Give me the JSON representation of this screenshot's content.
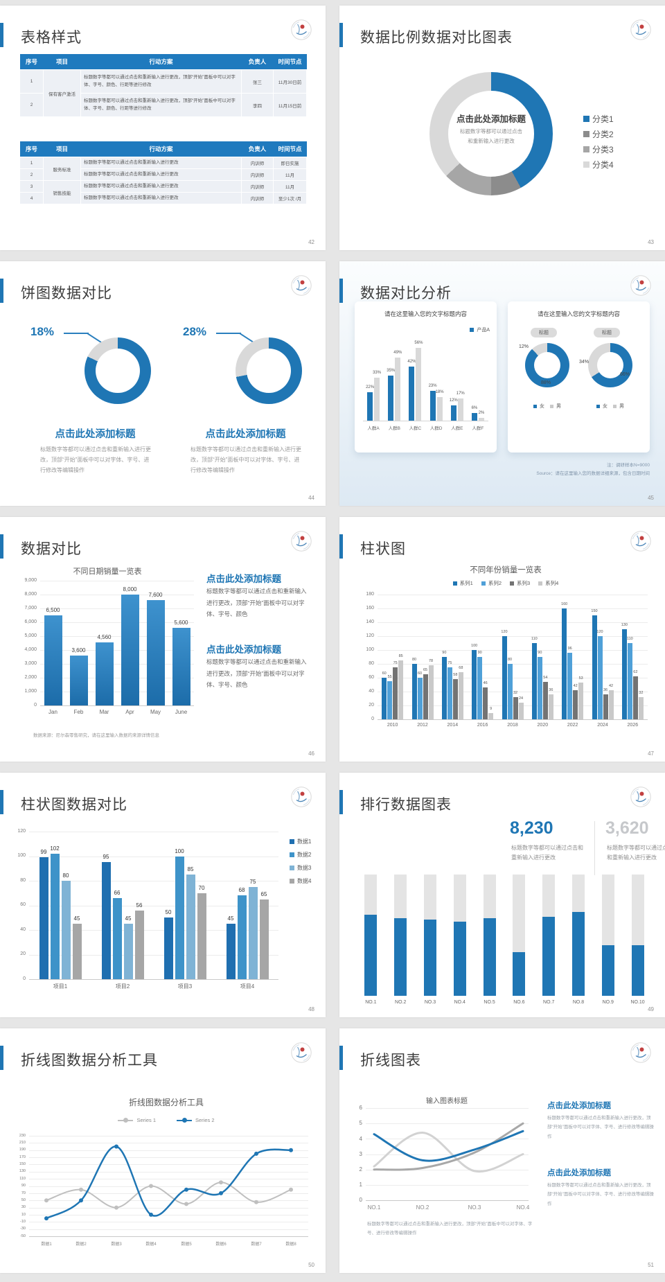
{
  "colors": {
    "accent": "#1F76B4",
    "blue2": "#4FA0D8",
    "blue3": "#7FB3D5",
    "grayDark": "#737373",
    "grayMid": "#A6A6A6",
    "grayLight": "#D9D9D9",
    "barGray": "#C9C9C9",
    "statGray": "#C6C8CB"
  },
  "slides": {
    "s42": {
      "title": "表格样式",
      "page": "42",
      "headers": [
        "序号",
        "项目",
        "行动方案",
        "负责人",
        "时间节点"
      ],
      "table1": {
        "rows": [
          {
            "no": "1",
            "project": "保有客户激活",
            "span": 2,
            "action": "标题数字等都可以通过点击和重新输入进行更改，顶部“开始”面板中可以对字体、字号、颜色、行距等进行修改",
            "owner": "张三",
            "time": "11月30日前"
          },
          {
            "no": "2",
            "action": "标题数字等都可以通过点击和重新输入进行更改，顶部“开始”面板中可以对字体、字号、颜色、行距等进行修改",
            "owner": "李四",
            "time": "11月15日前"
          }
        ]
      },
      "table2": {
        "rows": [
          {
            "no": "1",
            "project": "服务标准",
            "span": 2,
            "action": "标题数字等都可以通过点击和重新输入进行更改",
            "owner": "内训师",
            "time": "即日实施"
          },
          {
            "no": "2",
            "action": "标题数字等都可以通过点击和重新输入进行更改",
            "owner": "内训师",
            "time": "11月"
          },
          {
            "no": "3",
            "project": "销售技能",
            "span": 2,
            "action": "标题数字等都可以通过点击和重新输入进行更改",
            "owner": "内训师",
            "time": "11月"
          },
          {
            "no": "4",
            "action": "标题数字等都可以通过点击和重新输入进行更改",
            "owner": "内训师",
            "time": "至少1次 /月"
          }
        ]
      }
    },
    "s43": {
      "title": "数据比例数据对比图表",
      "page": "43",
      "center_title": "点击此处添加标题",
      "center_text": "标题数字等都可以通过点击和重新输入进行更改",
      "chart_data": {
        "type": "pie",
        "segments": [
          {
            "label": "分类1",
            "value": 42,
            "color": "#1F76B4"
          },
          {
            "label": "分类2",
            "value": 8,
            "color": "#8C8C8C"
          },
          {
            "label": "分类3",
            "value": 13,
            "color": "#A6A6A6"
          },
          {
            "label": "分类4",
            "value": 37,
            "color": "#D9D9D9"
          }
        ]
      }
    },
    "s44": {
      "title": "饼图数据对比",
      "page": "44",
      "item_title": "点击此处添加标题",
      "item_text": "标题数字等都可以通过点击和重新输入进行更改，顶部“开始”面板中可以对字体、字号、进行修改等编辑操作",
      "chart_data": [
        {
          "type": "pie",
          "label": "18%",
          "gray": 18,
          "blue": 82
        },
        {
          "type": "pie",
          "label": "28%",
          "gray": 28,
          "blue": 72
        }
      ]
    },
    "s45": {
      "title": "数据对比分析",
      "page": "45",
      "note1": "注：调研样本N=9000",
      "note2": "Source：请在这里输入您的数据详细来源，包含日期时间",
      "card1": {
        "heading": "请在这里输入您的文字标题内容",
        "legend": "产品A",
        "chart_data": {
          "type": "bar",
          "categories": [
            "人群A",
            "人群B",
            "人群C",
            "人群D",
            "人群E",
            "人群F"
          ],
          "series": [
            {
              "name": "产品A",
              "values": [
                22,
                35,
                42,
                23,
                12,
                6
              ]
            },
            {
              "name": "对比",
              "values": [
                33,
                49,
                56,
                18,
                17,
                2
              ]
            }
          ],
          "labels_blue": [
            "22%",
            "35%",
            "42%",
            "23%",
            "12%",
            "6%"
          ],
          "labels_gray": [
            "33%",
            "49%",
            "56%",
            "18%",
            "17%",
            "2%"
          ],
          "ylim": [
            0,
            60
          ]
        }
      },
      "card2": {
        "heading": "请在这里输入您的文字标题内容",
        "badge": "标题",
        "legend_female": "女",
        "legend_male": "男",
        "donuts": [
          {
            "labels": [
              "12%",
              "88%"
            ],
            "gray": 12,
            "blue": 88
          },
          {
            "labels": [
              "34%",
              "66%"
            ],
            "gray": 34,
            "blue": 66
          }
        ]
      }
    },
    "s46": {
      "title": "数据对比",
      "page": "46",
      "source": "数据来源：尼尔森零售研究，请在这里输入数据的来源详情信息",
      "block1": {
        "heading": "点击此处添加标题",
        "text": "标题数字等都可以通过点击和重新输入进行更改，顶部“开始”面板中可以对字体、字号、颜色"
      },
      "block2": {
        "heading": "点击此处添加标题",
        "text": "标题数字等都可以通过点击和重新输入进行更改，顶部“开始”面板中可以对字体、字号、颜色"
      },
      "chart_data": {
        "type": "bar",
        "title": "不同日期销量一览表",
        "categories": [
          "Jan",
          "Feb",
          "Mar",
          "Apr",
          "May",
          "June"
        ],
        "values": [
          6500,
          3600,
          4560,
          8000,
          7600,
          5600
        ],
        "labels": [
          "6,500",
          "3,600",
          "4,560",
          "8,000",
          "7,600",
          "5,600"
        ],
        "yticks": [
          "9,000",
          "8,000",
          "7,000",
          "6,000",
          "5,000",
          "4,000",
          "3,000",
          "2,000",
          "1,000",
          "0"
        ],
        "ylim": [
          0,
          9000
        ]
      }
    },
    "s47": {
      "title": "柱状图",
      "page": "47",
      "chart_data": {
        "type": "bar",
        "title": "不同年份销量一览表",
        "categories": [
          "2010",
          "2012",
          "2014",
          "2016",
          "2018",
          "2020",
          "2022",
          "2024",
          "2026"
        ],
        "legend": [
          "系列1",
          "系列2",
          "系列3",
          "系列4"
        ],
        "series": [
          {
            "name": "系列1",
            "color": "#1F76B4",
            "values": [
              60,
              80,
              90,
              100,
              120,
              110,
              160,
              150,
              130
            ]
          },
          {
            "name": "系列2",
            "color": "#4FA0D8",
            "values": [
              55,
              60,
              75,
              90,
              80,
              90,
              96,
              120,
              110
            ]
          },
          {
            "name": "系列3",
            "color": "#737373",
            "values": [
              75,
              65,
              58,
              46,
              32,
              54,
              42,
              36,
              62
            ]
          },
          {
            "name": "系列4",
            "color": "#C9C9C9",
            "values": [
              85,
              78,
              68,
              9,
              24,
              36,
              53,
              42,
              32
            ]
          }
        ],
        "yticks": [
          "180",
          "160",
          "140",
          "120",
          "100",
          "80",
          "60",
          "40",
          "20",
          "0"
        ],
        "ylim": [
          0,
          180
        ]
      }
    },
    "s48": {
      "title": "柱状图数据对比",
      "page": "48",
      "chart_data": {
        "type": "bar",
        "categories": [
          "项目1",
          "项目2",
          "项目3",
          "项目4"
        ],
        "legend": [
          "数据1",
          "数据2",
          "数据3",
          "数据4"
        ],
        "series": [
          {
            "name": "数据1",
            "color": "#1F6FB0",
            "values": [
              99,
              95,
              50,
              45
            ]
          },
          {
            "name": "数据2",
            "color": "#3E93C9",
            "values": [
              102,
              66,
              100,
              68
            ]
          },
          {
            "name": "数据3",
            "color": "#7FB3D5",
            "values": [
              80,
              45,
              85,
              75
            ]
          },
          {
            "name": "数据4",
            "color": "#A6A6A6",
            "values": [
              45,
              56,
              70,
              65
            ]
          }
        ],
        "yticks": [
          "120",
          "100",
          "80",
          "60",
          "40",
          "20",
          "0"
        ],
        "ylim": [
          0,
          120
        ]
      }
    },
    "s49": {
      "title": "排行数据图表",
      "page": "49",
      "stat1": {
        "value": "8,230",
        "text": "标题数字等都可以通过点击和重新输入进行更改"
      },
      "stat2": {
        "value": "3,620",
        "text": "标题数字等都可以通过点击和重新输入进行更改"
      },
      "chart_data": {
        "type": "bar",
        "categories": [
          "NO.1",
          "NO.2",
          "NO.3",
          "NO.4",
          "NO.5",
          "NO.6",
          "NO.7",
          "NO.8",
          "NO.9",
          "NO.10"
        ],
        "blue_pct": [
          67,
          64,
          63,
          61,
          64,
          36,
          65,
          69,
          42,
          42
        ],
        "total": 100
      }
    },
    "s50": {
      "title": "折线图数据分析工具",
      "page": "50",
      "chart_data": {
        "type": "line",
        "title": "折线图数据分析工具",
        "legend": [
          "Series 1",
          "Series 2"
        ],
        "x": [
          "数据1",
          "数据2",
          "数据3",
          "数据4",
          "数据5",
          "数据6",
          "数据7",
          "数据8"
        ],
        "series": [
          {
            "name": "Series 1",
            "color": "#BFBFBF",
            "values": [
              50,
              80,
              30,
              90,
              40,
              100,
              45,
              80
            ]
          },
          {
            "name": "Series 2",
            "color": "#1F76B4",
            "values": [
              0,
              50,
              200,
              10,
              80,
              70,
              180,
              190
            ]
          }
        ],
        "yticks": [
          "230",
          "210",
          "190",
          "170",
          "150",
          "130",
          "110",
          "90",
          "70",
          "50",
          "30",
          "10",
          "-10",
          "-30",
          "-50"
        ],
        "ylim": [
          -50,
          230
        ]
      }
    },
    "s51": {
      "title": "折线图表",
      "page": "51",
      "caption": "标题数字等都可以通过点击和重新输入进行更改，顶部“开始”面板中可以对字体、字号、进行修改等编辑操作",
      "block1": {
        "heading": "点击此处添加标题",
        "text": "标题数字等都可以通过点击和重新输入进行更改，顶部“开始”面板中可以对字体、字号、进行修改等编辑操作"
      },
      "block2": {
        "heading": "点击此处添加标题",
        "text": "标题数字等都可以通过点击和重新输入进行更改，顶部“开始”面板中可以对字体、字号、进行修改等编辑操作"
      },
      "chart_data": {
        "type": "line",
        "title": "输入图表标题",
        "x": [
          "NO.1",
          "NO.2",
          "NO.3",
          "NO.4"
        ],
        "series": [
          {
            "name": "灰线1",
            "color": "#A8A8A8",
            "values": [
              2.0,
              2.1,
              3.1,
              5.0
            ]
          },
          {
            "name": "灰线2",
            "color": "#D2D2D2",
            "values": [
              2.2,
              4.4,
              1.9,
              3.0
            ]
          },
          {
            "name": "蓝线",
            "color": "#1F76B4",
            "values": [
              4.3,
              2.6,
              3.3,
              4.5
            ]
          }
        ],
        "yticks": [
          "6",
          "5",
          "4",
          "3",
          "2",
          "1",
          "0"
        ],
        "ylim": [
          0,
          6
        ]
      }
    }
  }
}
